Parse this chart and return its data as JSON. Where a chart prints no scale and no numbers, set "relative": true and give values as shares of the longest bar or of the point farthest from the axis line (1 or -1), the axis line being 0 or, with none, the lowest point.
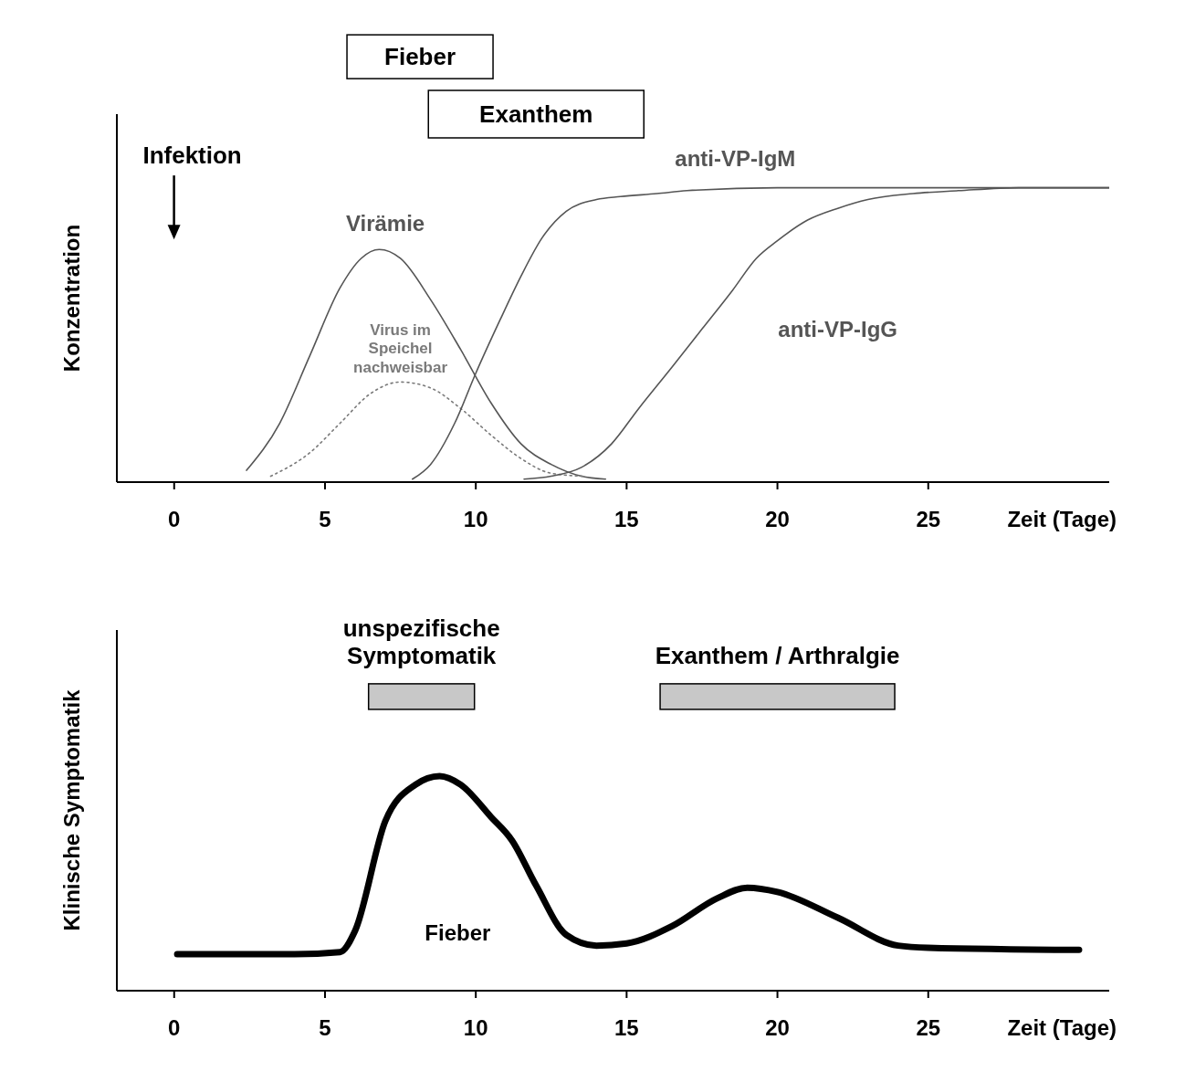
{
  "chart_data": [
    {
      "type": "line",
      "relative": true,
      "xlim": [
        -1.9,
        31
      ],
      "xticks": [
        0,
        5,
        10,
        15,
        20,
        25
      ],
      "xlabel": "Zeit (Tage)",
      "ylabel": "Konzentration",
      "annotations": [
        "Fieber",
        "Exanthem",
        "Infektion"
      ],
      "series": [
        {
          "name": "Virämie",
          "color": "#555555",
          "line_style": "solid",
          "x": [
            2.4,
            3.5,
            4.5,
            5.5,
            6.2,
            6.8,
            7.5,
            8.5,
            9.5,
            10.5,
            11.5,
            12.5,
            13.5,
            14.3
          ],
          "values": [
            0.04,
            0.2,
            0.43,
            0.66,
            0.76,
            0.79,
            0.76,
            0.62,
            0.45,
            0.27,
            0.13,
            0.06,
            0.02,
            0.01
          ]
        },
        {
          "name": "Virus im Speichel nachweisbar",
          "color": "#7a7a7a",
          "line_style": "dotted",
          "x": [
            3.2,
            4.5,
            5.5,
            6.5,
            7.5,
            8.5,
            9.5,
            10.5,
            11.5,
            12.5,
            13.6
          ],
          "values": [
            0.02,
            0.1,
            0.2,
            0.3,
            0.34,
            0.32,
            0.25,
            0.16,
            0.08,
            0.03,
            0.02
          ]
        },
        {
          "name": "anti-VP-IgM",
          "color": "#555555",
          "line_style": "solid",
          "x": [
            7.9,
            8.5,
            9.3,
            10,
            10.8,
            11.5,
            12.2,
            13,
            14,
            14.8,
            16,
            17,
            20,
            25,
            31
          ],
          "values": [
            0.01,
            0.06,
            0.2,
            0.37,
            0.55,
            0.7,
            0.83,
            0.92,
            0.96,
            0.97,
            0.98,
            0.99,
            1,
            1,
            1
          ]
        },
        {
          "name": "anti-VP-IgG",
          "color": "#555555",
          "line_style": "solid",
          "x": [
            11.6,
            12.5,
            13.5,
            14.5,
            15.4,
            16.5,
            17.5,
            18.5,
            19.3,
            20,
            21,
            22,
            23,
            24.5,
            26,
            28,
            31
          ],
          "values": [
            0.01,
            0.02,
            0.05,
            0.13,
            0.25,
            0.39,
            0.52,
            0.65,
            0.76,
            0.82,
            0.89,
            0.93,
            0.96,
            0.98,
            0.99,
            1,
            1
          ]
        }
      ]
    },
    {
      "type": "line",
      "relative": true,
      "xlim": [
        -1.9,
        31
      ],
      "xticks": [
        0,
        5,
        10,
        15,
        20,
        25
      ],
      "xlabel": "Zeit (Tage)",
      "ylabel": "Klinische Symptomatik",
      "annotations": [
        "unspezifische Symptomatik",
        "Exanthem / Arthralgie"
      ],
      "series": [
        {
          "name": "Fieber",
          "color": "#000000",
          "line_style": "solid",
          "x": [
            0.1,
            4,
            5.5,
            6,
            7,
            8,
            8.8,
            9.5,
            10.5,
            11.2,
            12,
            13,
            14,
            15,
            16.5,
            18,
            19,
            20,
            22,
            24,
            25,
            30
          ],
          "values": [
            0.17,
            0.17,
            0.18,
            0.28,
            0.79,
            0.96,
            1,
            0.96,
            0.81,
            0.7,
            0.49,
            0.26,
            0.21,
            0.22,
            0.3,
            0.43,
            0.48,
            0.46,
            0.34,
            0.21,
            0.2,
            0.19
          ]
        }
      ]
    }
  ]
}
